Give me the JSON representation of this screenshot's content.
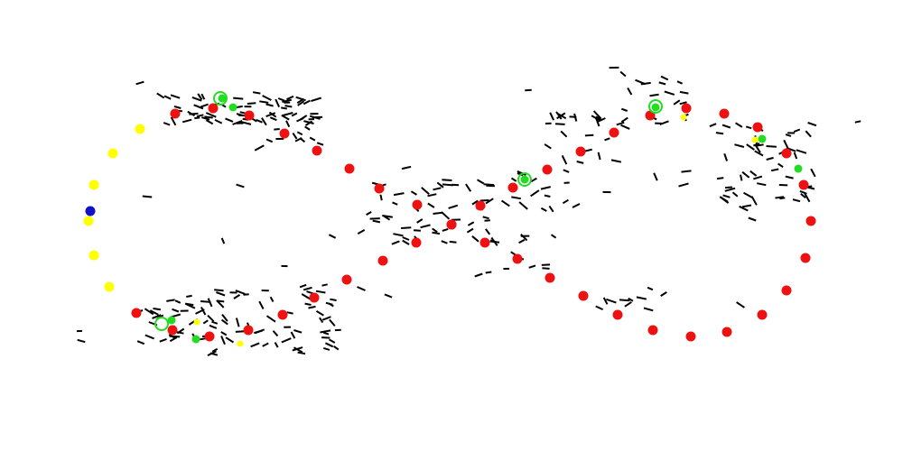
{
  "colors": {
    "background": "#ffffff",
    "red": "#ee1111",
    "yellow": "#ffff00",
    "green": "#22dd22",
    "blue": "#1111cc",
    "stroke": "#000000"
  },
  "legend": []
}
